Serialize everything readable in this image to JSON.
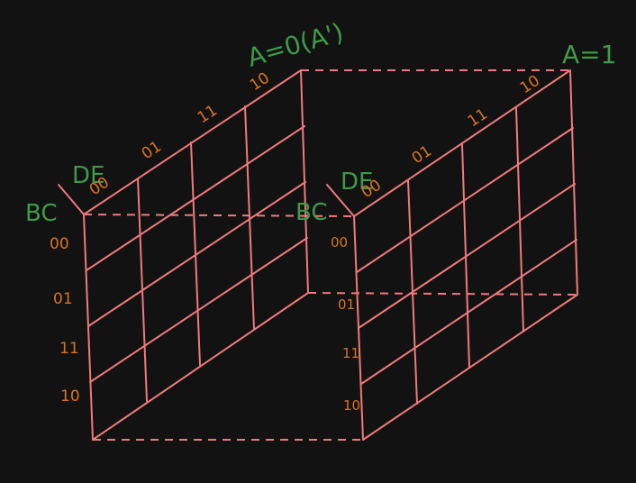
{
  "title_left": "A=0(A')",
  "title_right": "A=1",
  "left_map": {
    "de_label": "DE",
    "bc_label": "BC",
    "col_labels": [
      "00",
      "01",
      "11",
      "10"
    ],
    "row_labels": [
      "00",
      "01",
      "11",
      "10"
    ]
  },
  "right_map": {
    "de_label": "DE",
    "bc_label": "BC",
    "col_labels": [
      "00",
      "01",
      "11",
      "10"
    ],
    "row_labels": [
      "00",
      "01",
      "11",
      "10"
    ]
  },
  "colors": {
    "grid": "#f07a7a",
    "label_green": "#3e9a4a",
    "label_orange": "#d9731f",
    "background": "#121212"
  }
}
